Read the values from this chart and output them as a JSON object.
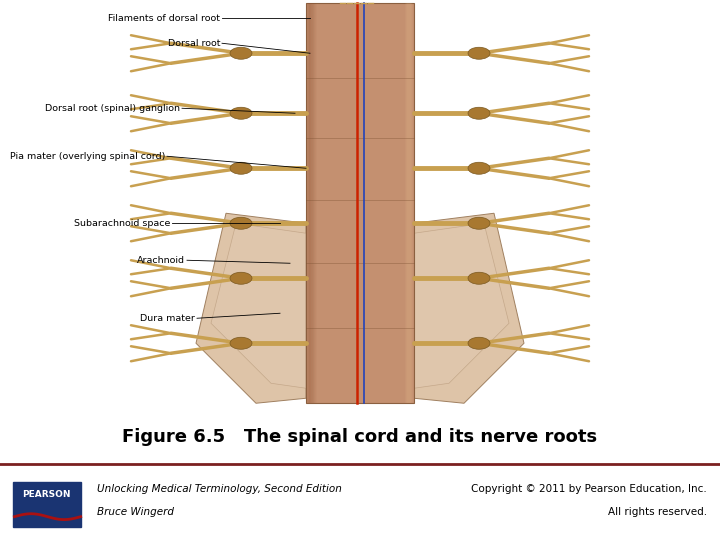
{
  "title": "Figure 6.5   The spinal cord and its nerve roots",
  "title_fontsize": 13,
  "title_fontweight": "bold",
  "title_color": "#000000",
  "footer_left_line1": "Unlocking Medical Terminology, Second Edition",
  "footer_left_line2": "Bruce Wingerd",
  "footer_right_line1": "Copyright © 2011 by Pearson Education, Inc.",
  "footer_right_line2": "All rights reserved.",
  "footer_fontsize": 7.5,
  "divider_color": "#7B2020",
  "divider_linewidth": 2.0,
  "bg_color": "#ffffff",
  "pearson_box_color": "#1a3472",
  "pearson_text": "PEARSON",
  "pearson_red_line": "#AA1111"
}
